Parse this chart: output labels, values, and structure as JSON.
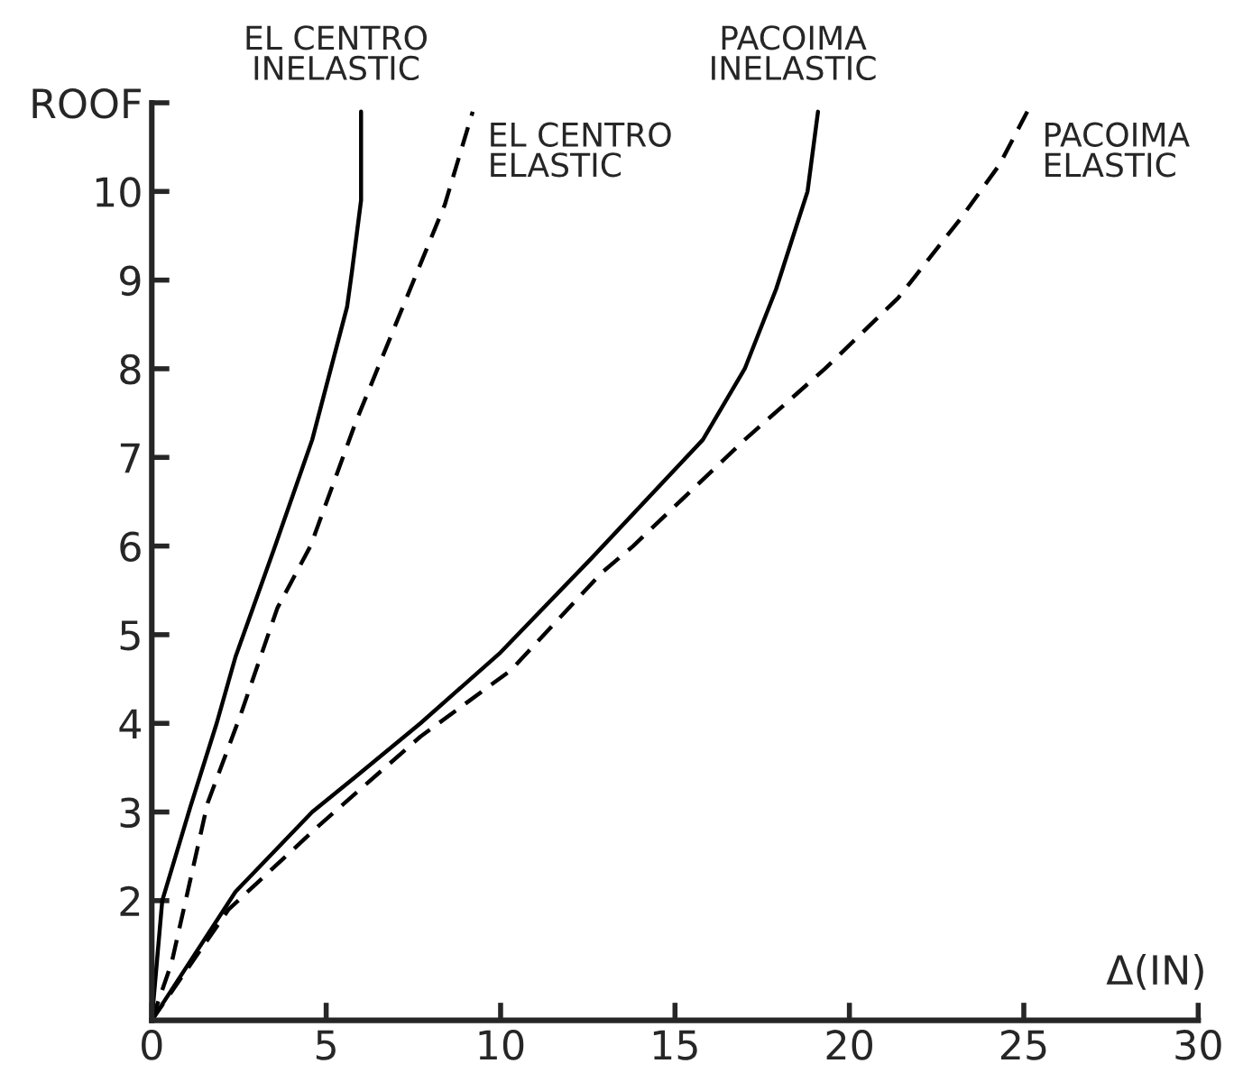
{
  "chart_data": {
    "type": "line",
    "xlabel": "Δ(IN)",
    "xlim": [
      0,
      30
    ],
    "xticks": [
      0,
      5,
      10,
      15,
      20,
      25,
      30
    ],
    "ylim": [
      0.65,
      11
    ],
    "yticks": [
      2,
      3,
      4,
      5,
      6,
      7,
      8,
      9,
      10,
      {
        "value": 11,
        "label": "ROOF"
      }
    ],
    "grid": false,
    "legend": false,
    "marker": "none",
    "series": [
      {
        "color": "#000000",
        "line_style": "solid",
        "x": [
          0,
          0.3,
          1.1,
          1.86,
          2.4,
          3.5,
          4.6,
          5.6,
          5.74,
          6.0,
          6.0
        ],
        "values": [
          0.65,
          2.0,
          3.05,
          4.0,
          4.75,
          5.96,
          7.2,
          8.7,
          9.1,
          9.9,
          10.9
        ]
      },
      {
        "color": "#000000",
        "line_style": "dashed",
        "x": [
          0,
          0.57,
          1.6,
          2.55,
          3.6,
          4.55,
          5.85,
          7.2,
          8.4,
          9.2
        ],
        "values": [
          0.65,
          1.3,
          3.1,
          4.1,
          5.3,
          6.0,
          7.4,
          8.7,
          9.85,
          10.9
        ]
      },
      {
        "color": "#000000",
        "line_style": "solid",
        "x": [
          0,
          2.4,
          4.6,
          5.85,
          7.7,
          10.0,
          12.6,
          15.8,
          17.0,
          17.9,
          18.8,
          19.1
        ],
        "values": [
          0.65,
          2.1,
          3.0,
          3.4,
          4.0,
          4.8,
          5.86,
          7.2,
          8.0,
          8.9,
          10.0,
          10.9
        ]
      },
      {
        "color": "#000000",
        "line_style": "dashed",
        "x": [
          0,
          2.2,
          4.8,
          7.7,
          10.3,
          12.9,
          13.8,
          17.0,
          19.3,
          21.4,
          23.2,
          24.3,
          25.1
        ],
        "values": [
          0.65,
          1.9,
          2.85,
          3.85,
          4.6,
          5.7,
          6.0,
          7.2,
          8.0,
          8.8,
          9.7,
          10.3,
          10.9
        ]
      }
    ],
    "annotations": [
      {
        "text": "EL CENTRO\nINELASTIC",
        "x": 6.0,
        "y": 10.9
      },
      {
        "text": "EL CENTRO\nELASTIC",
        "x": 9.2,
        "y": 10.9
      },
      {
        "text": "PACOIMA\nINELASTIC",
        "x": 19.1,
        "y": 10.9
      },
      {
        "text": "PACOIMA\nELASTIC",
        "x": 25.1,
        "y": 10.9
      }
    ]
  }
}
